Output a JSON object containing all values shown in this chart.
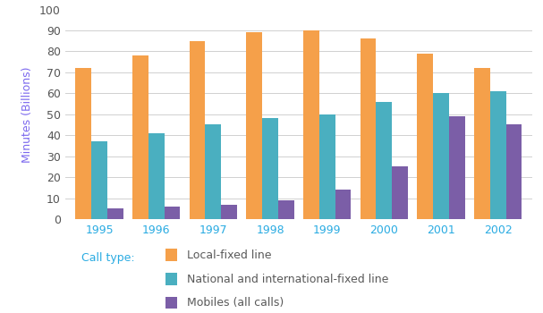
{
  "years": [
    "1995",
    "1996",
    "1997",
    "1998",
    "1999",
    "2000",
    "2001",
    "2002"
  ],
  "local_fixed": [
    72,
    78,
    85,
    89,
    90,
    86,
    79,
    72
  ],
  "national_fixed": [
    37,
    41,
    45,
    48,
    50,
    56,
    60,
    61
  ],
  "mobiles": [
    5,
    6,
    7,
    9,
    14,
    25,
    49,
    45
  ],
  "colors": {
    "local_fixed": "#F5A04A",
    "national_fixed": "#4AAFC0",
    "mobiles": "#7B5EA7"
  },
  "ylabel": "Minutes (Billions)",
  "legend_label": "Call type:",
  "legend_entries": [
    "Local-fixed line",
    "National and international-fixed line",
    "Mobiles (all calls)"
  ],
  "ylim": [
    0,
    100
  ],
  "yticks": [
    0,
    10,
    20,
    30,
    40,
    50,
    60,
    70,
    80,
    90,
    100
  ],
  "legend_color": "#29ABE2",
  "xtick_color": "#29ABE2",
  "ylabel_color": "#7B68EE",
  "background_color": "#FFFFFF",
  "bar_width": 0.28
}
